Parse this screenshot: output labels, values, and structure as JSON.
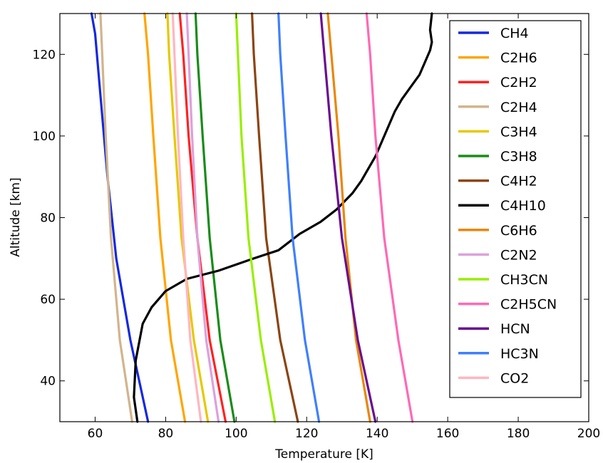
{
  "chart_data": {
    "type": "line",
    "xlabel": "Temperature [K]",
    "ylabel": "Altitude [km]",
    "xlim": [
      50,
      200
    ],
    "ylim": [
      30,
      130
    ],
    "xticks": [
      60,
      80,
      100,
      120,
      140,
      160,
      180,
      200
    ],
    "yticks": [
      40,
      60,
      80,
      100,
      120
    ],
    "grid": false,
    "legend_position": "top-right",
    "series": [
      {
        "name": "CH4",
        "color": "#1428e0",
        "x": [
          75,
          70,
          66,
          63.5,
          61.5,
          60,
          59
        ],
        "y": [
          30,
          50,
          70,
          90,
          110,
          125,
          130
        ]
      },
      {
        "name": "C2H6",
        "color": "#ffa500",
        "x": [
          85.5,
          81.5,
          78.5,
          76.5,
          75,
          74
        ],
        "y": [
          30,
          50,
          75,
          100,
          120,
          130
        ]
      },
      {
        "name": "C2H2",
        "color": "#ff2222",
        "x": [
          97,
          92.5,
          89,
          86.5,
          85,
          84
        ],
        "y": [
          30,
          50,
          75,
          100,
          120,
          130
        ]
      },
      {
        "name": "C2H4",
        "color": "#d2b48c",
        "x": [
          70.5,
          67,
          64.5,
          63,
          62,
          61.5
        ],
        "y": [
          30,
          50,
          75,
          100,
          120,
          130
        ]
      },
      {
        "name": "C3H4",
        "color": "#e6c800",
        "x": [
          92,
          88,
          84.5,
          82.5,
          81,
          80.5
        ],
        "y": [
          30,
          50,
          75,
          100,
          120,
          130
        ]
      },
      {
        "name": "C3H8",
        "color": "#1a8c1a",
        "x": [
          99.5,
          95.5,
          92.5,
          90.5,
          89,
          88.5
        ],
        "y": [
          30,
          50,
          75,
          100,
          120,
          130
        ]
      },
      {
        "name": "C4H2",
        "color": "#8b4513",
        "x": [
          117.5,
          112.5,
          108.5,
          106.5,
          105,
          104.5
        ],
        "y": [
          30,
          50,
          75,
          100,
          120,
          130
        ]
      },
      {
        "name": "C4H10",
        "color": "#000000",
        "x": [
          72,
          71,
          71.5,
          73.5,
          76,
          80,
          86,
          95,
          105,
          112,
          118,
          124,
          128.5,
          133,
          135.5,
          137.5,
          139.5,
          140.5,
          142,
          143.5,
          145,
          147,
          149.5,
          152,
          153.5,
          155,
          155.5,
          155,
          155.5
        ],
        "y": [
          30,
          36,
          45,
          54,
          58,
          62,
          65,
          67,
          70,
          72,
          76,
          79,
          82,
          86,
          89,
          92,
          95,
          97,
          100,
          103,
          106,
          109,
          112,
          115,
          118,
          121,
          123,
          126,
          130
        ]
      },
      {
        "name": "C6H6",
        "color": "#e8870a",
        "x": [
          138,
          134,
          131,
          129,
          127,
          126
        ],
        "y": [
          30,
          50,
          75,
          100,
          120,
          130
        ]
      },
      {
        "name": "C2N2",
        "color": "#dda0dd",
        "x": [
          95,
          91.5,
          89,
          87.5,
          86.5,
          86
        ],
        "y": [
          30,
          50,
          75,
          100,
          120,
          130
        ]
      },
      {
        "name": "CH3CN",
        "color": "#99ee00",
        "x": [
          111,
          107,
          103.5,
          101.5,
          100.5,
          100
        ],
        "y": [
          30,
          50,
          75,
          100,
          120,
          130
        ]
      },
      {
        "name": "C2H5CN",
        "color": "#ff69b4",
        "x": [
          150,
          146,
          142,
          139.5,
          138,
          137
        ],
        "y": [
          30,
          50,
          75,
          100,
          120,
          130
        ]
      },
      {
        "name": "HCN",
        "color": "#6a0d91",
        "x": [
          139.5,
          134.5,
          130,
          127,
          125,
          124
        ],
        "y": [
          30,
          50,
          75,
          100,
          120,
          130
        ]
      },
      {
        "name": "HC3N",
        "color": "#3f7fff",
        "x": [
          123.5,
          119.5,
          116,
          114,
          112.5,
          112
        ],
        "y": [
          30,
          50,
          75,
          100,
          120,
          130
        ]
      },
      {
        "name": "CO2",
        "color": "#ffb6c1",
        "x": [
          90,
          87,
          85,
          83.5,
          82.5,
          82
        ],
        "y": [
          30,
          50,
          75,
          100,
          120,
          130
        ]
      }
    ]
  }
}
